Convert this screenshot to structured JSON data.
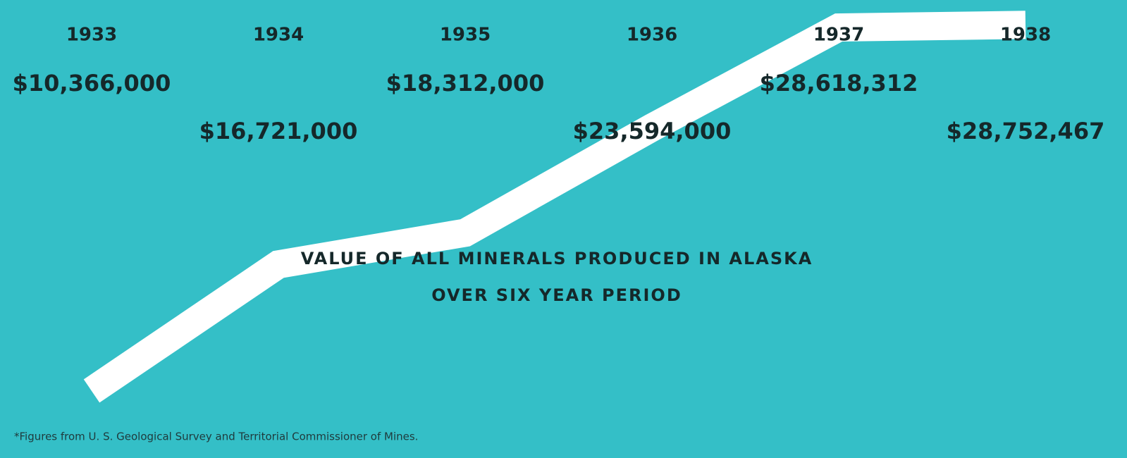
{
  "chart_data": {
    "type": "line",
    "title": "VALUE OF ALL MINERALS PRODUCED IN ALASKA",
    "subtitle": "OVER SIX YEAR PERIOD",
    "categories": [
      "1933",
      "1934",
      "1935",
      "1936",
      "1937",
      "1938"
    ],
    "values": [
      10366000,
      16721000,
      18312000,
      23594000,
      28618312,
      28752467
    ],
    "value_labels": [
      "$10,366,000",
      "$16,721,000",
      "$18,312,000",
      "$23,594,000",
      "$28,618,312",
      "$28,752,467"
    ],
    "color": "#ffffff",
    "ylim": [
      7000000,
      30000000
    ],
    "footnote": "*Figures from U. S. Geological Survey and Territorial Commissioner of Mines."
  }
}
